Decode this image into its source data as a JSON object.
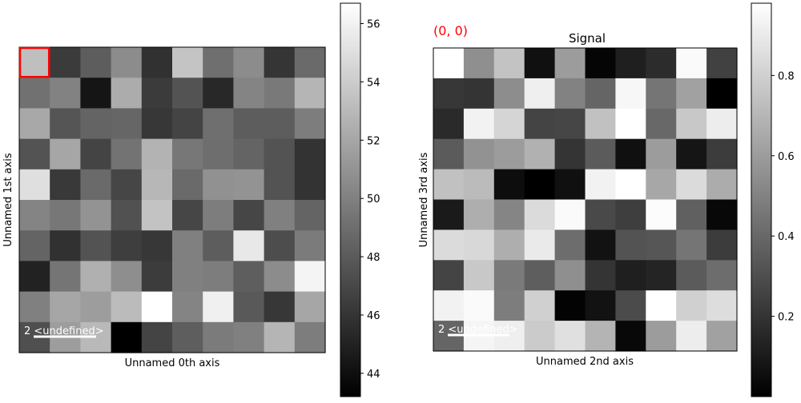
{
  "chart_data": [
    {
      "type": "heatmap",
      "title": "",
      "xlabel": "Unnamed 0th axis",
      "ylabel": "Unnamed 1st axis",
      "scalebar_label": "2 <undefined>",
      "colormap": "gray",
      "clim": [
        43.2,
        56.7
      ],
      "colorbar_ticks": [
        44,
        46,
        48,
        50,
        52,
        54,
        56
      ],
      "selected_cell": [
        0,
        0
      ],
      "selection_color": "#ff0000",
      "values": [
        [
          53.3,
          46.3,
          48.1,
          50.6,
          45.8,
          53.6,
          49.1,
          50.6,
          46.0,
          48.8
        ],
        [
          49.2,
          50.1,
          44.3,
          52.3,
          46.3,
          47.6,
          45.3,
          50.2,
          49.6,
          52.8
        ],
        [
          52.1,
          47.7,
          48.5,
          48.6,
          46.1,
          46.8,
          49.1,
          48.1,
          48.1,
          49.8
        ],
        [
          47.6,
          52.0,
          46.8,
          49.3,
          52.7,
          49.5,
          49.0,
          48.5,
          47.6,
          45.9
        ],
        [
          55.0,
          46.2,
          48.8,
          46.9,
          52.9,
          48.8,
          50.9,
          51.0,
          47.6,
          45.9
        ],
        [
          50.2,
          49.5,
          51.0,
          47.5,
          53.5,
          46.9,
          49.8,
          46.9,
          50.0,
          48.5
        ],
        [
          48.5,
          45.8,
          47.6,
          46.5,
          46.1,
          50.0,
          48.1,
          55.5,
          47.3,
          49.7
        ],
        [
          45.0,
          49.4,
          52.5,
          50.7,
          46.4,
          50.0,
          49.8,
          48.2,
          50.6,
          56.1
        ],
        [
          50.0,
          52.0,
          51.5,
          53.1,
          56.7,
          50.2,
          55.9,
          47.9,
          46.1,
          52.0
        ],
        [
          47.4,
          51.5,
          53.0,
          43.2,
          46.8,
          48.2,
          49.7,
          50.0,
          52.8,
          49.8
        ]
      ]
    },
    {
      "type": "heatmap",
      "title": "Signal",
      "annotation": "(0, 0)",
      "annotation_color": "#ff0000",
      "xlabel": "Unnamed 2nd axis",
      "ylabel": "Unnamed 3rd axis",
      "scalebar_label": "2 <undefined>",
      "colormap": "gray",
      "clim": [
        0.0,
        0.98
      ],
      "colorbar_ticks": [
        0.2,
        0.4,
        0.6,
        0.8
      ],
      "values": [
        [
          0.98,
          0.55,
          0.75,
          0.06,
          0.6,
          0.02,
          0.12,
          0.17,
          0.96,
          0.25
        ],
        [
          0.21,
          0.2,
          0.54,
          0.92,
          0.5,
          0.39,
          0.95,
          0.45,
          0.62,
          0.0
        ],
        [
          0.16,
          0.93,
          0.82,
          0.26,
          0.27,
          0.74,
          0.98,
          0.4,
          0.77,
          0.91
        ],
        [
          0.35,
          0.56,
          0.6,
          0.68,
          0.2,
          0.35,
          0.06,
          0.6,
          0.08,
          0.23
        ],
        [
          0.74,
          0.72,
          0.05,
          0.0,
          0.06,
          0.93,
          0.98,
          0.64,
          0.84,
          0.66
        ],
        [
          0.1,
          0.67,
          0.51,
          0.84,
          0.96,
          0.28,
          0.24,
          0.97,
          0.37,
          0.03
        ],
        [
          0.84,
          0.83,
          0.67,
          0.9,
          0.42,
          0.07,
          0.32,
          0.33,
          0.45,
          0.23
        ],
        [
          0.26,
          0.77,
          0.47,
          0.36,
          0.55,
          0.2,
          0.12,
          0.14,
          0.35,
          0.42
        ],
        [
          0.93,
          0.96,
          0.48,
          0.8,
          0.01,
          0.07,
          0.29,
          0.98,
          0.8,
          0.85
        ],
        [
          0.39,
          0.94,
          0.92,
          0.78,
          0.86,
          0.69,
          0.03,
          0.6,
          0.91,
          0.62
        ]
      ]
    }
  ]
}
